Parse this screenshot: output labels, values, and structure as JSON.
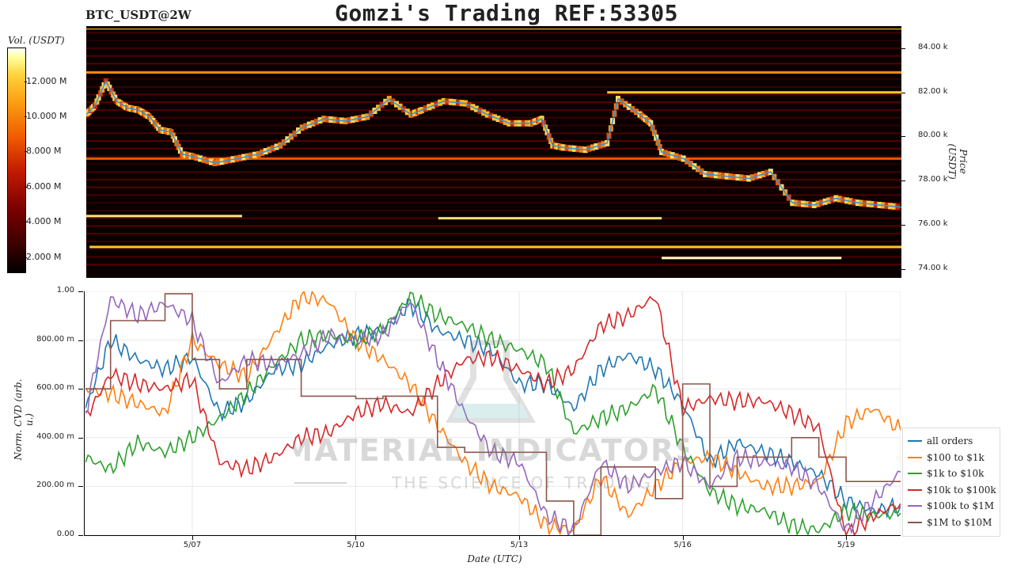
{
  "header": {
    "title": "Gomzi's Trading REF:53305",
    "symbol": "BTC_USDT@2W"
  },
  "colorbar": {
    "label": "Vol. (USDT)",
    "ticks": [
      "12.000 M",
      "10.000 M",
      "8.000 M",
      "6.000 M",
      "4.000 M",
      "2.000 M"
    ]
  },
  "watermark": {
    "line1": "MATERIAL INDICATORS",
    "line2": "THE SCIENCE OF TRADING"
  },
  "colors": {
    "all_orders": "#1f77b4",
    "r100_1k": "#ff7f0e",
    "r1k_10k": "#2ca02c",
    "r10k_100k": "#d62728",
    "r100k_1M": "#9467bd",
    "r1M_10M": "#8c564b",
    "price_line": "#3a8fd6"
  },
  "chart_data": [
    {
      "type": "heatmap",
      "title": "Gomzi's Trading REF:53305",
      "ylabel": "Price (USDT)",
      "ylim": [
        73.6,
        85.0
      ],
      "yticks": [
        "84.00 k",
        "82.00 k",
        "80.00 k",
        "78.00 k",
        "76.00 k",
        "74.00 k"
      ],
      "ytick_values": [
        84,
        82,
        80,
        78,
        76,
        74
      ],
      "price_series": {
        "name": "price",
        "x": [
          5.04,
          5.2,
          5.4,
          5.6,
          5.8,
          6.0,
          6.2,
          6.4,
          6.6,
          6.8,
          7.0,
          7.4,
          7.8,
          8.2,
          8.6,
          9.0,
          9.4,
          9.8,
          10.2,
          10.6,
          11.0,
          11.2,
          11.6,
          12.0,
          12.4,
          12.8,
          13.2,
          13.4,
          13.6,
          13.8,
          14.2,
          14.6,
          14.8,
          15.2,
          15.4,
          15.6,
          16.0,
          16.4,
          16.8,
          17.2,
          17.6,
          18.0,
          18.4,
          18.8,
          19.2,
          19.6,
          20.0
        ],
        "y": [
          81.0,
          81.4,
          82.5,
          81.6,
          81.3,
          81.2,
          80.9,
          80.3,
          80.2,
          79.2,
          79.1,
          78.8,
          79.0,
          79.2,
          79.6,
          80.4,
          80.8,
          80.7,
          80.9,
          81.7,
          81.0,
          81.2,
          81.6,
          81.5,
          81.0,
          80.6,
          80.6,
          80.8,
          79.6,
          79.5,
          79.4,
          79.7,
          81.7,
          81.0,
          80.6,
          79.3,
          79.0,
          78.3,
          78.2,
          78.1,
          78.4,
          77.0,
          76.9,
          77.2,
          77.0,
          76.9,
          76.8
        ]
      },
      "liquidity_levels": [
        {
          "price": 84.9,
          "x0": 5.04,
          "x1": 20.0,
          "intensity": 0.85
        },
        {
          "price": 82.9,
          "x0": 5.04,
          "x1": 20.0,
          "intensity": 0.8
        },
        {
          "price": 82.0,
          "x0": 14.6,
          "x1": 20.0,
          "intensity": 0.9
        },
        {
          "price": 79.0,
          "x0": 5.04,
          "x1": 20.0,
          "intensity": 0.7
        },
        {
          "price": 76.4,
          "x0": 5.04,
          "x1": 7.9,
          "intensity": 0.95
        },
        {
          "price": 76.3,
          "x0": 11.5,
          "x1": 15.6,
          "intensity": 0.95
        },
        {
          "price": 75.0,
          "x0": 5.1,
          "x1": 20.0,
          "intensity": 0.9
        },
        {
          "price": 74.5,
          "x0": 15.6,
          "x1": 18.9,
          "intensity": 1.0
        }
      ]
    },
    {
      "type": "line",
      "xlabel": "Date (UTC)",
      "ylabel": "Norm. CVD (arb. u.)",
      "ylim": [
        0,
        1
      ],
      "xlim": [
        5.04,
        20.0
      ],
      "xticks": [
        "5/07",
        "5/10",
        "5/13",
        "5/16",
        "5/19"
      ],
      "xtick_values": [
        7,
        10,
        13,
        16,
        19
      ],
      "yticks": [
        "1.00",
        "800.00 m",
        "600.00 m",
        "400.00 m",
        "200.00 m",
        "0.00"
      ],
      "ytick_values": [
        1.0,
        0.8,
        0.6,
        0.4,
        0.2,
        0.0
      ],
      "grid": true,
      "legend_position": "bottom-right",
      "x": [
        5.04,
        5.5,
        6.0,
        6.5,
        7.0,
        7.5,
        8.0,
        8.5,
        9.0,
        9.5,
        10.0,
        10.5,
        11.0,
        11.5,
        12.0,
        12.5,
        13.0,
        13.5,
        14.0,
        14.5,
        15.0,
        15.5,
        16.0,
        16.5,
        17.0,
        17.5,
        18.0,
        18.5,
        19.0,
        19.5,
        20.0
      ],
      "series": [
        {
          "name": "all orders",
          "key": "all_orders",
          "values": [
            0.52,
            0.8,
            0.72,
            0.68,
            0.73,
            0.5,
            0.55,
            0.68,
            0.7,
            0.78,
            0.82,
            0.84,
            0.95,
            0.84,
            0.8,
            0.76,
            0.62,
            0.62,
            0.52,
            0.68,
            0.74,
            0.68,
            0.54,
            0.3,
            0.38,
            0.34,
            0.3,
            0.25,
            0.14,
            0.1,
            0.12
          ]
        },
        {
          "name": "$100 to $1k",
          "key": "r100_1k",
          "values": [
            0.6,
            0.58,
            0.54,
            0.5,
            0.8,
            0.7,
            0.65,
            0.82,
            0.98,
            0.96,
            0.8,
            0.72,
            0.62,
            0.45,
            0.3,
            0.2,
            0.16,
            0.04,
            0.02,
            0.24,
            0.08,
            0.2,
            0.3,
            0.32,
            0.26,
            0.2,
            0.2,
            0.22,
            0.46,
            0.52,
            0.43
          ]
        },
        {
          "name": "$1k to $10k",
          "key": "r1k_10k",
          "values": [
            0.32,
            0.27,
            0.38,
            0.34,
            0.4,
            0.48,
            0.58,
            0.7,
            0.8,
            0.82,
            0.8,
            0.84,
            0.98,
            0.9,
            0.86,
            0.8,
            0.76,
            0.7,
            0.42,
            0.48,
            0.52,
            0.6,
            0.36,
            0.18,
            0.12,
            0.1,
            0.04,
            0.02,
            0.1,
            0.08,
            0.09
          ]
        },
        {
          "name": "$10k to $100k",
          "key": "r10k_100k",
          "values": [
            0.48,
            0.66,
            0.62,
            0.6,
            0.64,
            0.3,
            0.27,
            0.32,
            0.4,
            0.42,
            0.5,
            0.54,
            0.5,
            0.62,
            0.72,
            0.73,
            0.68,
            0.62,
            0.68,
            0.86,
            0.9,
            0.98,
            0.52,
            0.56,
            0.55,
            0.55,
            0.5,
            0.44,
            0.0,
            0.08,
            0.13
          ]
        },
        {
          "name": "$100k to $1M",
          "key": "r100k_1M",
          "values": [
            0.5,
            0.97,
            0.9,
            0.95,
            0.88,
            0.62,
            0.72,
            0.7,
            0.74,
            0.82,
            0.8,
            0.82,
            0.96,
            0.72,
            0.5,
            0.34,
            0.3,
            0.08,
            0.02,
            0.3,
            0.2,
            0.26,
            0.3,
            0.2,
            0.32,
            0.3,
            0.28,
            0.2,
            0.02,
            0.14,
            0.26
          ]
        },
        {
          "name": "$1M to $10M",
          "key": "r1M_10M",
          "values": [
            0.6,
            0.88,
            0.88,
            0.99,
            0.72,
            0.6,
            0.72,
            0.72,
            0.57,
            0.57,
            0.56,
            0.57,
            0.57,
            0.36,
            0.34,
            0.34,
            0.34,
            0.14,
            0.0,
            0.28,
            0.28,
            0.15,
            0.62,
            0.2,
            0.32,
            0.32,
            0.4,
            0.32,
            0.22,
            0.22,
            0.22
          ]
        }
      ]
    }
  ]
}
